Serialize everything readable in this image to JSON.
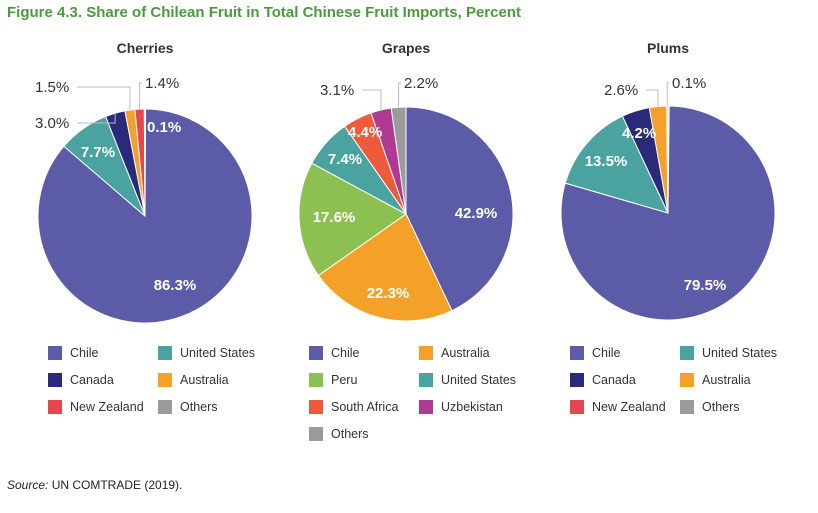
{
  "figure_title": "Figure 4.3. Share of Chilean Fruit in Total Chinese Fruit Imports, Percent",
  "source_label": "Source:",
  "source_text": " UN COMTRADE (2019).",
  "colors": {
    "Chile": "#5b5ba8",
    "United States": "#4aa3a0",
    "Canada": "#2a2a7a",
    "Australia": "#f4a12a",
    "New Zealand": "#e8464e",
    "Others": "#9b9b9b",
    "Peru": "#8cc152",
    "South Africa": "#ef5a3b",
    "Uzbekistan": "#b03a92"
  },
  "chart_data": [
    {
      "type": "pie",
      "title": "Cherries",
      "slices": [
        {
          "name": "Chile",
          "value": 86.3,
          "label": "86.3%"
        },
        {
          "name": "United States",
          "value": 7.7,
          "label": "7.7%"
        },
        {
          "name": "Canada",
          "value": 3.0,
          "label": "3.0%"
        },
        {
          "name": "Australia",
          "value": 1.5,
          "label": "1.5%"
        },
        {
          "name": "New Zealand",
          "value": 1.4,
          "label": "1.4%"
        },
        {
          "name": "Others",
          "value": 0.1,
          "label": "0.1%"
        }
      ],
      "legend": [
        "Chile",
        "United States",
        "Canada",
        "Australia",
        "New Zealand",
        "Others"
      ]
    },
    {
      "type": "pie",
      "title": "Grapes",
      "slices": [
        {
          "name": "Chile",
          "value": 42.9,
          "label": "42.9%"
        },
        {
          "name": "Australia",
          "value": 22.3,
          "label": "22.3%"
        },
        {
          "name": "Peru",
          "value": 17.6,
          "label": "17.6%"
        },
        {
          "name": "United States",
          "value": 7.4,
          "label": "7.4%"
        },
        {
          "name": "South Africa",
          "value": 4.4,
          "label": "4.4%"
        },
        {
          "name": "Uzbekistan",
          "value": 3.1,
          "label": "3.1%"
        },
        {
          "name": "Others",
          "value": 2.2,
          "label": "2.2%"
        }
      ],
      "legend": [
        "Chile",
        "Australia",
        "Peru",
        "United States",
        "South Africa",
        "Uzbekistan",
        "Others"
      ]
    },
    {
      "type": "pie",
      "title": "Plums",
      "slices": [
        {
          "name": "Chile",
          "value": 79.5,
          "label": "79.5%"
        },
        {
          "name": "United States",
          "value": 13.5,
          "label": "13.5%"
        },
        {
          "name": "Canada",
          "value": 4.2,
          "label": "4.2%"
        },
        {
          "name": "Australia",
          "value": 2.6,
          "label": "2.6%"
        },
        {
          "name": "New Zealand",
          "value": 0.1,
          "label": "0.1%"
        },
        {
          "name": "Others",
          "value": 0.1,
          "label": ""
        }
      ],
      "legend": [
        "Chile",
        "United States",
        "Canada",
        "Australia",
        "New Zealand",
        "Others"
      ]
    }
  ]
}
